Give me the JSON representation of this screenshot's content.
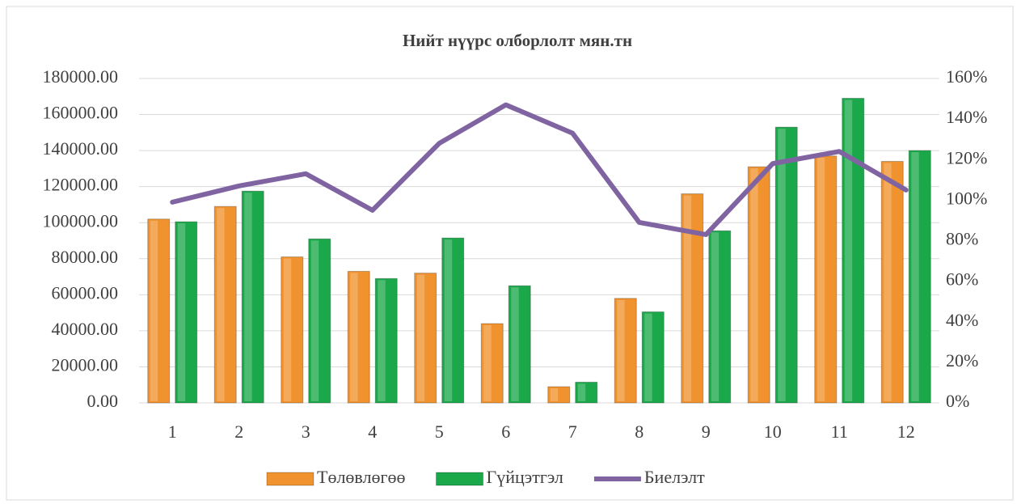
{
  "chart_data": {
    "type": "bar",
    "title": "Нийт нүүрс олборлолт мян.тн",
    "categories": [
      "1",
      "2",
      "3",
      "4",
      "5",
      "6",
      "7",
      "8",
      "9",
      "10",
      "11",
      "12"
    ],
    "series": [
      {
        "name": "Төлөвлөгөө",
        "color": "#f0922e",
        "values": [
          102000,
          109000,
          81000,
          73000,
          72000,
          44000,
          9000,
          58000,
          116000,
          131000,
          137000,
          134000
        ]
      },
      {
        "name": "Гүйцэтгэл",
        "color": "#1ba84b",
        "values": [
          100500,
          117500,
          91000,
          69000,
          91500,
          65000,
          11500,
          50500,
          95500,
          153000,
          169000,
          140000
        ]
      },
      {
        "name": "Биелэлт",
        "color": "#8064a2",
        "type": "line",
        "axis": "y2",
        "values": [
          99,
          107,
          113,
          95,
          128,
          147,
          133,
          89,
          83,
          118,
          124,
          105
        ]
      }
    ],
    "ylim": [
      0,
      180000
    ],
    "yticks": [
      {
        "value": 0,
        "label": "0.00"
      },
      {
        "value": 20000,
        "label": "20000.00"
      },
      {
        "value": 40000,
        "label": "40000.00"
      },
      {
        "value": 60000,
        "label": "60000.00"
      },
      {
        "value": 80000,
        "label": "80000.00"
      },
      {
        "value": 100000,
        "label": "100000.00"
      },
      {
        "value": 120000,
        "label": "120000.00"
      },
      {
        "value": 140000,
        "label": "140000.00"
      },
      {
        "value": 160000,
        "label": "160000.00"
      },
      {
        "value": 180000,
        "label": "180000.00"
      }
    ],
    "y2lim": [
      0,
      160
    ],
    "y2ticks": [
      {
        "value": 0,
        "label": "0%"
      },
      {
        "value": 20,
        "label": "20%"
      },
      {
        "value": 40,
        "label": "40%"
      },
      {
        "value": 60,
        "label": "60%"
      },
      {
        "value": 80,
        "label": "80%"
      },
      {
        "value": 100,
        "label": "100%"
      },
      {
        "value": 120,
        "label": "120%"
      },
      {
        "value": 140,
        "label": "140%"
      },
      {
        "value": 160,
        "label": "160%"
      }
    ],
    "grid": true,
    "legend": "bottom"
  }
}
